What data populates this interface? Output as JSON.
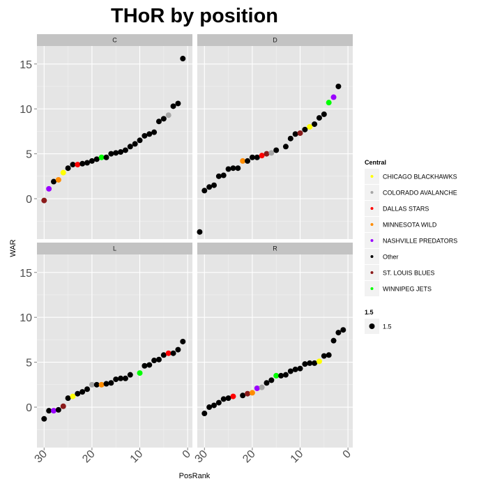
{
  "chart_data": {
    "type": "scatter",
    "title": "THoR by position",
    "xlabel": "PosRank",
    "ylabel": "WAR",
    "x_reversed": true,
    "xlim": [
      31.5,
      -1
    ],
    "ylim": [
      -4.5,
      17
    ],
    "x_ticks": [
      30,
      20,
      10,
      0
    ],
    "y_ticks": [
      0,
      5,
      10,
      15
    ],
    "x_tick_labels": [
      "30",
      "20",
      "10",
      "0"
    ],
    "y_tick_labels": [
      "0",
      "5",
      "10",
      "15"
    ],
    "grid": true,
    "facet_layout": "2x2",
    "legend_position": "right",
    "color_legend": {
      "title": "Central",
      "entries": [
        {
          "label": "CHICAGO BLACKHAWKS",
          "color": "#ffff00"
        },
        {
          "label": "COLORADO AVALANCHE",
          "color": "#a6a6a6"
        },
        {
          "label": "DALLAS STARS",
          "color": "#ff0000"
        },
        {
          "label": "MINNESOTA WILD",
          "color": "#ff8c00"
        },
        {
          "label": "NASHVILLE PREDATORS",
          "color": "#9a00ff"
        },
        {
          "label": "Other",
          "color": "#000000"
        },
        {
          "label": "ST. LOUIS BLUES",
          "color": "#8b1a1a"
        },
        {
          "label": "WINNIPEG JETS",
          "color": "#00ff00"
        }
      ]
    },
    "size_legend": {
      "title": "1.5",
      "entries": [
        {
          "label": "1.5",
          "color": "#000000"
        }
      ]
    },
    "facets": [
      {
        "name": "C",
        "points": [
          {
            "x": 30,
            "y": -0.2,
            "team": "ST. LOUIS BLUES"
          },
          {
            "x": 29,
            "y": 1.1,
            "team": "NASHVILLE PREDATORS"
          },
          {
            "x": 28,
            "y": 1.9,
            "team": "Other"
          },
          {
            "x": 27,
            "y": 2.1,
            "team": "MINNESOTA WILD"
          },
          {
            "x": 26,
            "y": 2.9,
            "team": "CHICAGO BLACKHAWKS"
          },
          {
            "x": 25,
            "y": 3.4,
            "team": "Other"
          },
          {
            "x": 24,
            "y": 3.8,
            "team": "Other"
          },
          {
            "x": 23,
            "y": 3.8,
            "team": "DALLAS STARS"
          },
          {
            "x": 22,
            "y": 3.9,
            "team": "Other"
          },
          {
            "x": 21,
            "y": 4.0,
            "team": "Other"
          },
          {
            "x": 20,
            "y": 4.2,
            "team": "Other"
          },
          {
            "x": 19,
            "y": 4.4,
            "team": "Other"
          },
          {
            "x": 18,
            "y": 4.6,
            "team": "WINNIPEG JETS"
          },
          {
            "x": 17,
            "y": 4.6,
            "team": "Other"
          },
          {
            "x": 16,
            "y": 5.0,
            "team": "Other"
          },
          {
            "x": 15,
            "y": 5.1,
            "team": "Other"
          },
          {
            "x": 14,
            "y": 5.2,
            "team": "Other"
          },
          {
            "x": 13,
            "y": 5.4,
            "team": "Other"
          },
          {
            "x": 12,
            "y": 5.8,
            "team": "Other"
          },
          {
            "x": 11,
            "y": 6.1,
            "team": "Other"
          },
          {
            "x": 10,
            "y": 6.5,
            "team": "Other"
          },
          {
            "x": 9,
            "y": 7.0,
            "team": "Other"
          },
          {
            "x": 8,
            "y": 7.2,
            "team": "Other"
          },
          {
            "x": 7,
            "y": 7.4,
            "team": "Other"
          },
          {
            "x": 6,
            "y": 8.6,
            "team": "Other"
          },
          {
            "x": 5,
            "y": 8.9,
            "team": "Other"
          },
          {
            "x": 4,
            "y": 9.3,
            "team": "COLORADO AVALANCHE"
          },
          {
            "x": 3,
            "y": 10.3,
            "team": "Other"
          },
          {
            "x": 2,
            "y": 10.6,
            "team": "Other"
          },
          {
            "x": 1,
            "y": 15.6,
            "team": "Other"
          }
        ]
      },
      {
        "name": "D",
        "points": [
          {
            "x": 31,
            "y": -3.7,
            "team": "Other"
          },
          {
            "x": 30,
            "y": 0.9,
            "team": "Other"
          },
          {
            "x": 29,
            "y": 1.3,
            "team": "Other"
          },
          {
            "x": 28,
            "y": 1.5,
            "team": "Other"
          },
          {
            "x": 27,
            "y": 2.5,
            "team": "Other"
          },
          {
            "x": 26,
            "y": 2.6,
            "team": "Other"
          },
          {
            "x": 25,
            "y": 3.3,
            "team": "Other"
          },
          {
            "x": 24,
            "y": 3.4,
            "team": "Other"
          },
          {
            "x": 23,
            "y": 3.4,
            "team": "Other"
          },
          {
            "x": 22,
            "y": 4.2,
            "team": "MINNESOTA WILD"
          },
          {
            "x": 21,
            "y": 4.2,
            "team": "Other"
          },
          {
            "x": 20,
            "y": 4.6,
            "team": "Other"
          },
          {
            "x": 19,
            "y": 4.6,
            "team": "Other"
          },
          {
            "x": 18,
            "y": 4.8,
            "team": "DALLAS STARS"
          },
          {
            "x": 17,
            "y": 5.0,
            "team": "ST. LOUIS BLUES"
          },
          {
            "x": 16,
            "y": 5.1,
            "team": "COLORADO AVALANCHE"
          },
          {
            "x": 15,
            "y": 5.4,
            "team": "Other"
          },
          {
            "x": 13,
            "y": 5.8,
            "team": "Other"
          },
          {
            "x": 12,
            "y": 6.7,
            "team": "Other"
          },
          {
            "x": 11,
            "y": 7.2,
            "team": "Other"
          },
          {
            "x": 10,
            "y": 7.3,
            "team": "ST. LOUIS BLUES"
          },
          {
            "x": 9,
            "y": 7.7,
            "team": "Other"
          },
          {
            "x": 8,
            "y": 8.0,
            "team": "CHICAGO BLACKHAWKS"
          },
          {
            "x": 7,
            "y": 8.3,
            "team": "Other"
          },
          {
            "x": 6,
            "y": 9.0,
            "team": "Other"
          },
          {
            "x": 5,
            "y": 9.4,
            "team": "Other"
          },
          {
            "x": 4,
            "y": 10.7,
            "team": "WINNIPEG JETS"
          },
          {
            "x": 3,
            "y": 11.3,
            "team": "NASHVILLE PREDATORS"
          },
          {
            "x": 2,
            "y": 12.5,
            "team": "Other"
          }
        ]
      },
      {
        "name": "L",
        "points": [
          {
            "x": 30,
            "y": -1.3,
            "team": "Other"
          },
          {
            "x": 29,
            "y": -0.4,
            "team": "Other"
          },
          {
            "x": 28,
            "y": -0.4,
            "team": "NASHVILLE PREDATORS"
          },
          {
            "x": 27,
            "y": -0.3,
            "team": "Other"
          },
          {
            "x": 26,
            "y": 0.1,
            "team": "ST. LOUIS BLUES"
          },
          {
            "x": 25,
            "y": 1.0,
            "team": "Other"
          },
          {
            "x": 24,
            "y": 1.2,
            "team": "CHICAGO BLACKHAWKS"
          },
          {
            "x": 23,
            "y": 1.5,
            "team": "Other"
          },
          {
            "x": 22,
            "y": 1.7,
            "team": "Other"
          },
          {
            "x": 21,
            "y": 2.0,
            "team": "Other"
          },
          {
            "x": 20,
            "y": 2.5,
            "team": "COLORADO AVALANCHE"
          },
          {
            "x": 19,
            "y": 2.5,
            "team": "Other"
          },
          {
            "x": 18,
            "y": 2.5,
            "team": "MINNESOTA WILD"
          },
          {
            "x": 17,
            "y": 2.6,
            "team": "Other"
          },
          {
            "x": 16,
            "y": 2.7,
            "team": "Other"
          },
          {
            "x": 15,
            "y": 3.1,
            "team": "Other"
          },
          {
            "x": 14,
            "y": 3.2,
            "team": "Other"
          },
          {
            "x": 13,
            "y": 3.2,
            "team": "Other"
          },
          {
            "x": 12,
            "y": 3.6,
            "team": "Other"
          },
          {
            "x": 10,
            "y": 3.8,
            "team": "WINNIPEG JETS"
          },
          {
            "x": 9,
            "y": 4.6,
            "team": "Other"
          },
          {
            "x": 8,
            "y": 4.7,
            "team": "Other"
          },
          {
            "x": 7,
            "y": 5.2,
            "team": "Other"
          },
          {
            "x": 6,
            "y": 5.3,
            "team": "Other"
          },
          {
            "x": 5,
            "y": 5.8,
            "team": "Other"
          },
          {
            "x": 4,
            "y": 6.0,
            "team": "DALLAS STARS"
          },
          {
            "x": 3,
            "y": 6.0,
            "team": "Other"
          },
          {
            "x": 2,
            "y": 6.4,
            "team": "Other"
          },
          {
            "x": 1,
            "y": 7.3,
            "team": "Other"
          }
        ]
      },
      {
        "name": "R",
        "points": [
          {
            "x": 30,
            "y": -0.7,
            "team": "Other"
          },
          {
            "x": 29,
            "y": 0.0,
            "team": "Other"
          },
          {
            "x": 28,
            "y": 0.2,
            "team": "Other"
          },
          {
            "x": 27,
            "y": 0.5,
            "team": "Other"
          },
          {
            "x": 26,
            "y": 0.9,
            "team": "Other"
          },
          {
            "x": 25,
            "y": 1.0,
            "team": "Other"
          },
          {
            "x": 24,
            "y": 1.2,
            "team": "DALLAS STARS"
          },
          {
            "x": 22,
            "y": 1.3,
            "team": "Other"
          },
          {
            "x": 21,
            "y": 1.5,
            "team": "ST. LOUIS BLUES"
          },
          {
            "x": 20,
            "y": 1.6,
            "team": "MINNESOTA WILD"
          },
          {
            "x": 19,
            "y": 2.1,
            "team": "NASHVILLE PREDATORS"
          },
          {
            "x": 18,
            "y": 2.2,
            "team": "COLORADO AVALANCHE"
          },
          {
            "x": 17,
            "y": 2.7,
            "team": "Other"
          },
          {
            "x": 16,
            "y": 3.0,
            "team": "Other"
          },
          {
            "x": 15,
            "y": 3.5,
            "team": "WINNIPEG JETS"
          },
          {
            "x": 14,
            "y": 3.5,
            "team": "Other"
          },
          {
            "x": 13,
            "y": 3.6,
            "team": "Other"
          },
          {
            "x": 12,
            "y": 4.0,
            "team": "Other"
          },
          {
            "x": 11,
            "y": 4.2,
            "team": "Other"
          },
          {
            "x": 10,
            "y": 4.3,
            "team": "Other"
          },
          {
            "x": 9,
            "y": 4.8,
            "team": "Other"
          },
          {
            "x": 8,
            "y": 4.9,
            "team": "Other"
          },
          {
            "x": 7,
            "y": 4.9,
            "team": "Other"
          },
          {
            "x": 6,
            "y": 5.1,
            "team": "CHICAGO BLACKHAWKS"
          },
          {
            "x": 5,
            "y": 5.7,
            "team": "Other"
          },
          {
            "x": 4,
            "y": 5.8,
            "team": "Other"
          },
          {
            "x": 3,
            "y": 7.4,
            "team": "Other"
          },
          {
            "x": 2,
            "y": 8.3,
            "team": "Other"
          },
          {
            "x": 1,
            "y": 8.6,
            "team": "Other"
          }
        ]
      }
    ]
  }
}
